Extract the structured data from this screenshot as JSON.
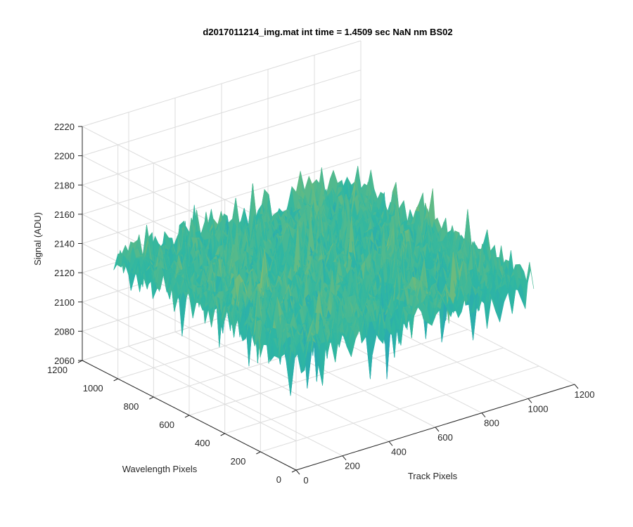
{
  "chart_data": {
    "type": "surface",
    "title": "d2017011214_img.mat int time = 1.4509 sec  NaN nm BS02",
    "xlabel": "Track Pixels",
    "ylabel": "Wavelength Pixels",
    "zlabel": "Signal (ADU)",
    "xlim": [
      0,
      1200
    ],
    "ylim": [
      0,
      1200
    ],
    "zlim": [
      2060,
      2220
    ],
    "x_ticks": [
      "0",
      "200",
      "400",
      "600",
      "800",
      "1000",
      "1200"
    ],
    "y_ticks": [
      "0",
      "200",
      "400",
      "600",
      "800",
      "1000",
      "1200"
    ],
    "z_ticks": [
      "2060",
      "2080",
      "2100",
      "2120",
      "2140",
      "2160",
      "2180",
      "2200",
      "2220"
    ],
    "data_x_range": [
      0,
      1024
    ],
    "data_y_range": [
      0,
      1024
    ],
    "surface_mean": 2140,
    "surface_noise_range": [
      2075,
      2205
    ],
    "colormap": "parula",
    "grid": true
  },
  "colors": {
    "surface_low": "#1f8fd0",
    "surface_mid": "#2fb7a2",
    "surface_high": "#f2c230",
    "grid": "#dcdcdc",
    "axis": "#262626"
  }
}
